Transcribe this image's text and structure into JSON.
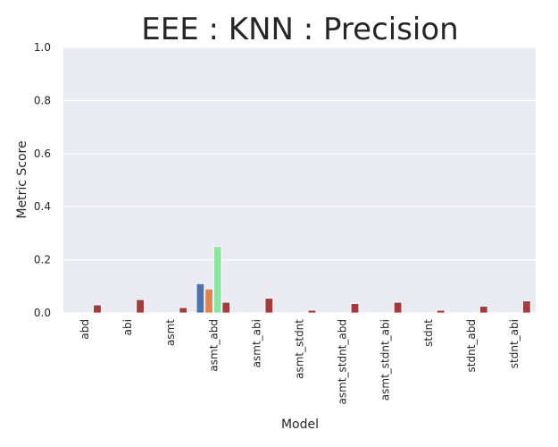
{
  "chart_data": {
    "type": "bar",
    "title": "EEE : KNN : Precision",
    "xlabel": "Model",
    "ylabel": "Metric Score",
    "ylim": [
      0,
      1.0
    ],
    "yticks": [
      "0.0",
      "0.2",
      "0.4",
      "0.6",
      "0.8",
      "1.0"
    ],
    "grid": true,
    "legend": "none",
    "categories": [
      "abd",
      "abi",
      "asmt",
      "asmt_abd",
      "asmt_abi",
      "asmt_stdnt",
      "asmt_stdnt_abd",
      "asmt_stdnt_abi",
      "stdnt",
      "stdnt_abd",
      "stdnt_abi"
    ],
    "series": [
      {
        "color": "#4c72b0",
        "values": [
          0,
          0,
          0,
          0.11,
          0,
          0,
          0,
          0,
          0,
          0,
          0
        ]
      },
      {
        "color": "#dd8452",
        "values": [
          0,
          0,
          0,
          0.09,
          0,
          0,
          0,
          0,
          0,
          0,
          0
        ]
      },
      {
        "color": "#8de5a1",
        "values": [
          0,
          0,
          0,
          0.25,
          0,
          0,
          0,
          0,
          0,
          0,
          0
        ]
      },
      {
        "color": "#a23b3b",
        "values": [
          0.03,
          0.05,
          0.02,
          0.04,
          0.055,
          0.01,
          0.035,
          0.04,
          0.01,
          0.025,
          0.045
        ]
      }
    ]
  }
}
